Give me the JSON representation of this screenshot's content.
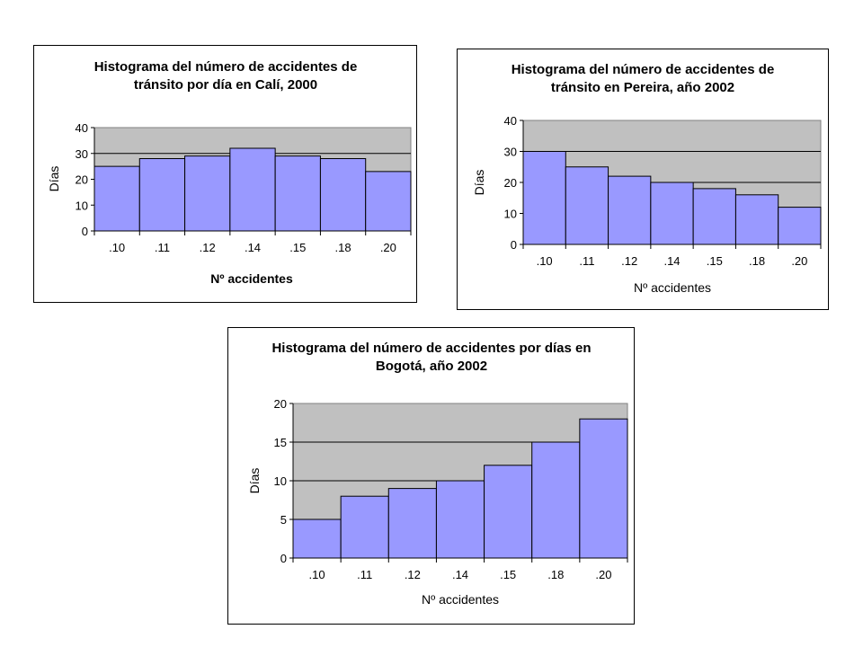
{
  "chart_data": [
    {
      "type": "bar",
      "title": [
        "Histograma del número de accidentes de",
        "tránsito por día en Calí, 2000"
      ],
      "xlabel": "Nº accidentes",
      "ylabel": "Días",
      "categories": [
        ".10",
        ".11",
        ".12",
        ".14",
        ".15",
        ".18",
        ".20"
      ],
      "values": [
        25,
        28,
        29,
        32,
        29,
        28,
        23
      ],
      "ylim": [
        0,
        40
      ],
      "yticks": [
        "0",
        "10",
        "20",
        "30",
        "40"
      ],
      "grid": true,
      "colors": {
        "bar": "#9999ff",
        "plot_bg": "#c0c0c0"
      }
    },
    {
      "type": "bar",
      "title": [
        "Histograma del número de accidentes de",
        "tránsito en Pereira, año 2002"
      ],
      "xlabel": "Nº accidentes",
      "ylabel": "Días",
      "categories": [
        ".10",
        ".11",
        ".12",
        ".14",
        ".15",
        ".18",
        ".20"
      ],
      "values": [
        30,
        25,
        22,
        20,
        18,
        16,
        12
      ],
      "ylim": [
        0,
        40
      ],
      "yticks": [
        "0",
        "10",
        "20",
        "30",
        "40"
      ],
      "grid": true,
      "colors": {
        "bar": "#9999ff",
        "plot_bg": "#c0c0c0"
      }
    },
    {
      "type": "bar",
      "title": [
        "Histograma del número de accidentes por días en",
        "Bogotá, año 2002"
      ],
      "xlabel": "Nº accidentes",
      "ylabel": "Días",
      "categories": [
        ".10",
        ".11",
        ".12",
        ".14",
        ".15",
        ".18",
        ".20"
      ],
      "values": [
        5,
        8,
        9,
        10,
        12,
        15,
        18
      ],
      "ylim": [
        0,
        20
      ],
      "yticks": [
        "0",
        "5",
        "10",
        "15",
        "20"
      ],
      "grid": true,
      "colors": {
        "bar": "#9999ff",
        "plot_bg": "#c0c0c0"
      }
    }
  ]
}
